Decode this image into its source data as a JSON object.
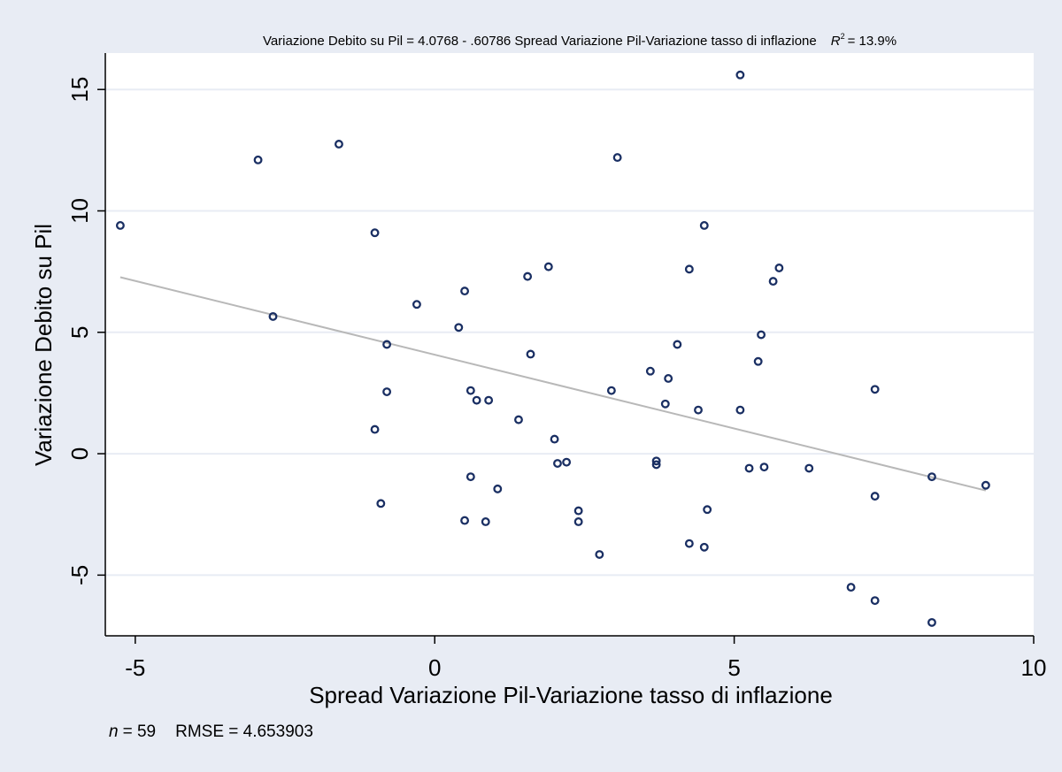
{
  "chart_data": {
    "type": "scatter",
    "title_text": "Variazione Debito su Pil = 4.0768 - .60786 Spread  Variazione Pil-Variazione tasso di inflazione",
    "r2": {
      "letter": "R",
      "exponent": "2",
      "value": "= 13.9%"
    },
    "xlabel": "Spread Variazione Pil-Variazione tasso di inflazione",
    "ylabel": "Variazione Debito su Pil",
    "xlim": [
      -5.5,
      10
    ],
    "ylim": [
      -7.5,
      16.5
    ],
    "xticks": [
      -5,
      0,
      5,
      10
    ],
    "yticks": [
      -5,
      0,
      5,
      10,
      15
    ],
    "grid": "horizontal",
    "fit_line": {
      "intercept": 4.0768,
      "slope": -0.60786,
      "x_range": [
        -5.25,
        9.2
      ]
    },
    "points": [
      [
        -5.25,
        9.4
      ],
      [
        -2.95,
        12.1
      ],
      [
        -2.7,
        5.65
      ],
      [
        -1.6,
        12.75
      ],
      [
        -1.0,
        9.1
      ],
      [
        -1.0,
        1.0
      ],
      [
        -0.9,
        -2.05
      ],
      [
        -0.8,
        4.5
      ],
      [
        -0.8,
        2.55
      ],
      [
        -0.3,
        6.15
      ],
      [
        0.4,
        5.2
      ],
      [
        0.5,
        6.7
      ],
      [
        0.5,
        -2.75
      ],
      [
        0.6,
        2.6
      ],
      [
        0.6,
        -0.95
      ],
      [
        0.7,
        2.2
      ],
      [
        0.85,
        -2.8
      ],
      [
        0.9,
        2.2
      ],
      [
        1.05,
        -1.45
      ],
      [
        1.4,
        1.4
      ],
      [
        1.55,
        7.3
      ],
      [
        1.6,
        4.1
      ],
      [
        1.9,
        7.7
      ],
      [
        2.0,
        0.6
      ],
      [
        2.05,
        -0.4
      ],
      [
        2.2,
        -0.35
      ],
      [
        2.4,
        -2.35
      ],
      [
        2.4,
        -2.8
      ],
      [
        2.75,
        -4.15
      ],
      [
        2.95,
        2.6
      ],
      [
        3.05,
        12.2
      ],
      [
        3.6,
        3.4
      ],
      [
        3.7,
        -0.3
      ],
      [
        3.7,
        -0.45
      ],
      [
        3.85,
        2.05
      ],
      [
        3.9,
        3.1
      ],
      [
        4.05,
        4.5
      ],
      [
        4.25,
        7.6
      ],
      [
        4.25,
        -3.7
      ],
      [
        4.4,
        1.8
      ],
      [
        4.5,
        9.4
      ],
      [
        4.5,
        -3.85
      ],
      [
        4.55,
        -2.3
      ],
      [
        5.1,
        1.8
      ],
      [
        5.1,
        15.6
      ],
      [
        5.25,
        -0.6
      ],
      [
        5.4,
        3.8
      ],
      [
        5.45,
        4.9
      ],
      [
        5.5,
        -0.55
      ],
      [
        5.65,
        7.1
      ],
      [
        5.75,
        7.65
      ],
      [
        6.25,
        -0.6
      ],
      [
        6.95,
        -5.5
      ],
      [
        7.35,
        2.65
      ],
      [
        7.35,
        -1.75
      ],
      [
        7.35,
        -6.05
      ],
      [
        8.3,
        -0.95
      ],
      [
        8.3,
        -6.95
      ],
      [
        9.2,
        -1.3
      ]
    ],
    "colors": {
      "marker": "#1a2f63",
      "fit": "#b8b8b8",
      "grid": "#e8ecf4",
      "background": "#e8ecf4",
      "plot": "#ffffff"
    }
  },
  "footer": {
    "n_label": "n",
    "n_text": "= 59",
    "rmse_text": "RMSE =   4.653903"
  }
}
